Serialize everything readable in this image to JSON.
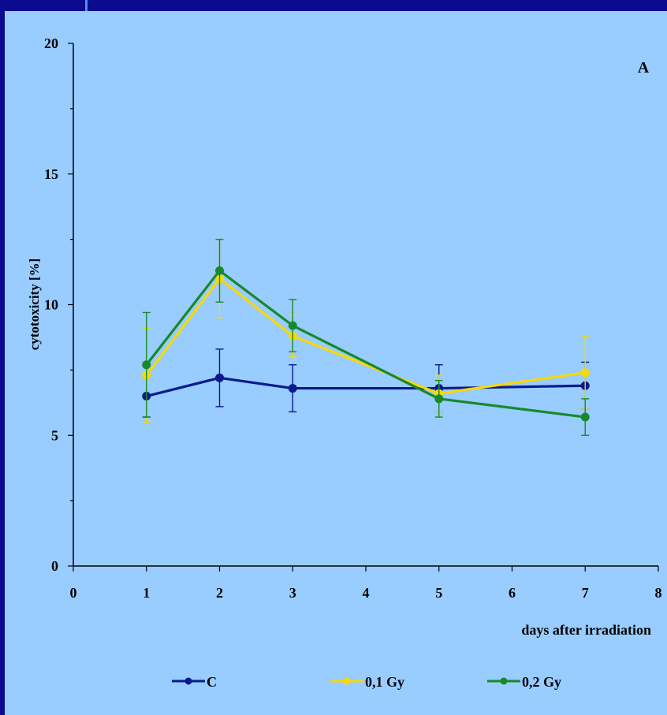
{
  "chart_data": {
    "type": "line",
    "panel_label": "A",
    "xlabel": "days after irradiation",
    "ylabel": "cytotoxicity [%]",
    "xlim": [
      0,
      8
    ],
    "ylim": [
      0,
      20
    ],
    "xticks": [
      "0",
      "1",
      "2",
      "3",
      "4",
      "5",
      "6",
      "7",
      "8"
    ],
    "yticks": [
      "0",
      "5",
      "10",
      "15",
      "20"
    ],
    "grid": false,
    "legend_position": "bottom",
    "x": [
      1,
      2,
      3,
      5,
      7
    ],
    "series": [
      {
        "name": "C",
        "color": "#0a1a8c",
        "values": [
          6.5,
          7.2,
          6.8,
          6.8,
          6.9
        ],
        "errors": [
          0.8,
          1.1,
          0.9,
          0.9,
          0.9
        ]
      },
      {
        "name": "0,1 Gy",
        "color": "#f5d90a",
        "values": [
          7.3,
          11.0,
          8.8,
          6.6,
          7.4
        ],
        "errors": [
          1.8,
          1.5,
          0.8,
          0.7,
          1.4
        ]
      },
      {
        "name": "0,2 Gy",
        "color": "#168a2a",
        "values": [
          7.7,
          11.3,
          9.2,
          6.4,
          5.7
        ],
        "errors": [
          2.0,
          1.2,
          1.0,
          0.7,
          0.7
        ]
      }
    ]
  }
}
